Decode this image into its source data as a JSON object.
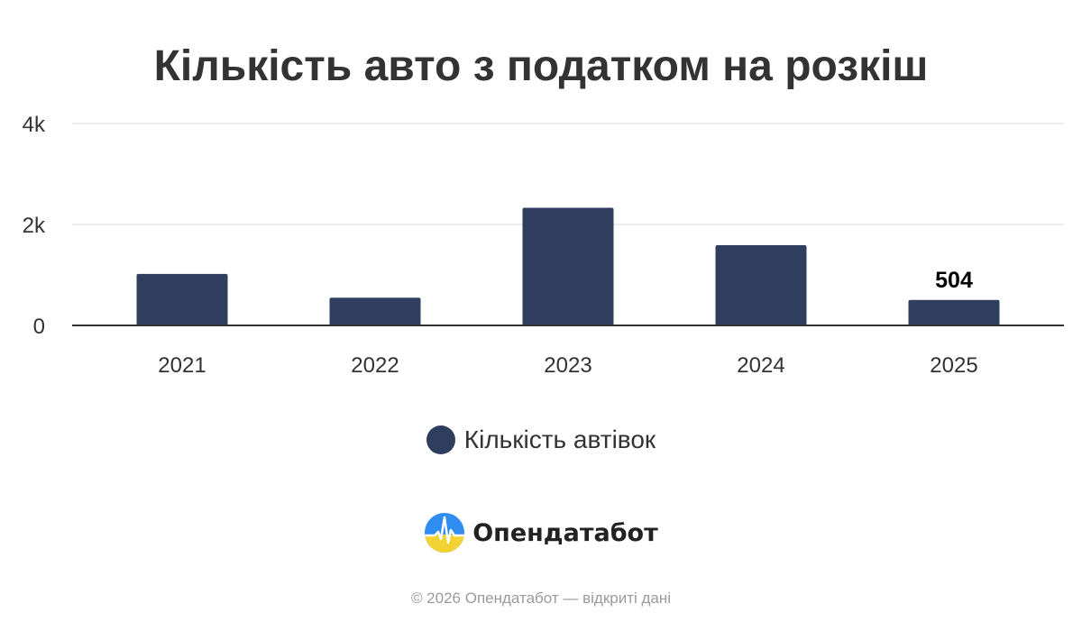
{
  "brand": {
    "name": "Опендатабот",
    "logo_icon": "opendatabot-logo-icon"
  },
  "footer": {
    "text": "© 2026 Опендатабот — відкриті дані"
  },
  "colors": {
    "bar": "#2f3e5e",
    "grid": "#e6e6e6",
    "axis": "#333333",
    "text": "#333333"
  },
  "chart_data": {
    "type": "bar",
    "title": "Кількість авто з податком на розкіш",
    "xlabel": "",
    "ylabel": "",
    "categories": [
      "2021",
      "2022",
      "2023",
      "2024",
      "2025"
    ],
    "series": [
      {
        "name": "Кількість автівок",
        "values": [
          1020,
          550,
          2330,
          1590,
          504
        ]
      }
    ],
    "ylim": [
      0,
      4000
    ],
    "y_ticks": [
      0,
      2000,
      4000
    ],
    "y_tick_labels": [
      "0",
      "2k",
      "4k"
    ],
    "data_labels": [
      {
        "category": "2025",
        "text": "504"
      }
    ],
    "grid": true,
    "legend_position": "bottom"
  }
}
